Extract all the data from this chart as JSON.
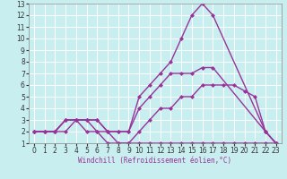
{
  "xlabel": "Windchill (Refroidissement éolien,°C)",
  "xlim": [
    -0.5,
    23.5
  ],
  "ylim": [
    1,
    13
  ],
  "xticks": [
    0,
    1,
    2,
    3,
    4,
    5,
    6,
    7,
    8,
    9,
    10,
    11,
    12,
    13,
    14,
    15,
    16,
    17,
    18,
    19,
    20,
    21,
    22,
    23
  ],
  "yticks": [
    1,
    2,
    3,
    4,
    5,
    6,
    7,
    8,
    9,
    10,
    11,
    12,
    13
  ],
  "background_color": "#c8eef0",
  "grid_color": "#ffffff",
  "line_color": "#993399",
  "lines": [
    {
      "x": [
        0,
        1,
        2,
        3,
        4,
        5,
        6,
        7,
        8,
        9,
        10,
        11,
        12,
        13,
        14,
        15,
        16,
        17,
        22,
        23
      ],
      "y": [
        2,
        2,
        2,
        3,
        3,
        3,
        3,
        2,
        2,
        2,
        5,
        6,
        7,
        8,
        10,
        12,
        13,
        12,
        2,
        1
      ]
    },
    {
      "x": [
        0,
        1,
        2,
        3,
        4,
        5,
        6,
        7,
        8,
        9,
        10,
        11,
        12,
        13,
        14,
        15,
        16,
        17,
        22,
        23
      ],
      "y": [
        2,
        2,
        2,
        3,
        3,
        3,
        3,
        2,
        2,
        2,
        4,
        5,
        6,
        7,
        7,
        7,
        7.5,
        7.5,
        2,
        1
      ]
    },
    {
      "x": [
        0,
        1,
        2,
        3,
        4,
        5,
        6,
        7,
        8,
        9,
        10,
        11,
        12,
        13,
        14,
        15,
        16,
        17,
        18,
        19,
        20,
        21,
        22,
        23
      ],
      "y": [
        2,
        2,
        2,
        2,
        3,
        3,
        2,
        2,
        1,
        1,
        2,
        3,
        4,
        4,
        5,
        5,
        6,
        6,
        6,
        6,
        5.5,
        5,
        2,
        1
      ]
    },
    {
      "x": [
        0,
        1,
        2,
        3,
        4,
        5,
        6,
        7,
        8,
        9,
        10,
        11,
        12,
        13,
        14,
        15,
        16,
        17,
        18,
        19,
        20,
        21,
        22,
        23
      ],
      "y": [
        2,
        2,
        2,
        3,
        3,
        2,
        2,
        1,
        1,
        1,
        1,
        1,
        1,
        1,
        1,
        1,
        1,
        1,
        1,
        1,
        1,
        1,
        1,
        1
      ]
    }
  ],
  "marker": "D",
  "markersize": 2.0,
  "linewidth": 1.0,
  "tick_fontsize": 5.5,
  "xlabel_fontsize": 5.5
}
